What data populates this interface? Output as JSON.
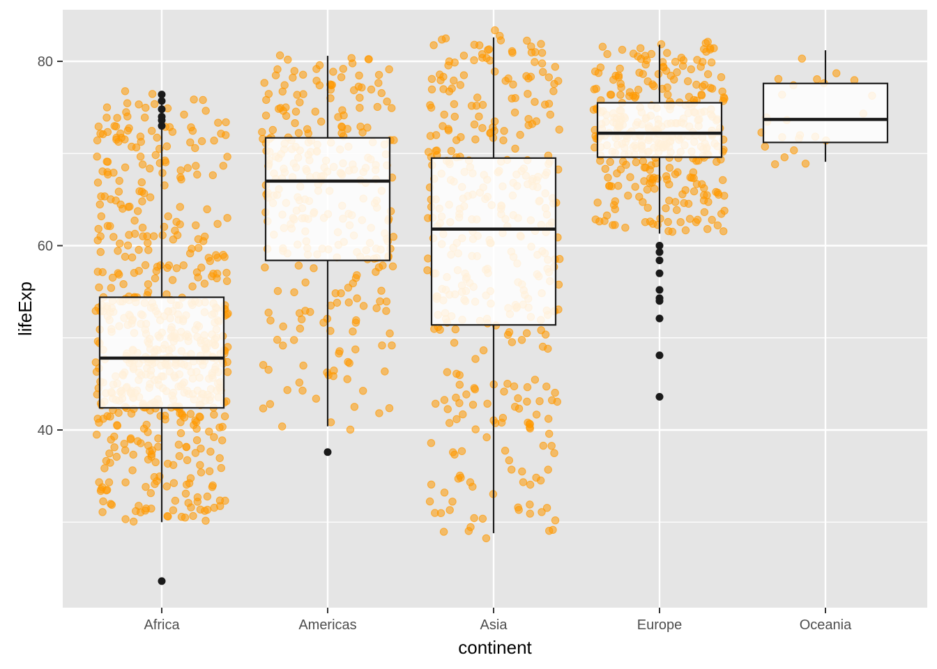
{
  "chart_data": {
    "type": "boxplot",
    "title": "",
    "xlabel": "continent",
    "ylabel": "lifeExp",
    "categories": [
      "Africa",
      "Americas",
      "Asia",
      "Europe",
      "Oceania"
    ],
    "ylim": [
      22.5,
      85.0
    ],
    "yticks": [
      40,
      60,
      80
    ],
    "grid": true,
    "legend": "none",
    "colors": {
      "panel_bg": "#e5e5e5",
      "grid": "#ffffff",
      "box_fill": "#ffffff",
      "box_line": "#1a1a1a",
      "points": "#ff9900",
      "outliers": "#1a1a1a"
    },
    "boxes": [
      {
        "category": "Africa",
        "whisker_low": 30.0,
        "q1": 42.4,
        "median": 47.8,
        "q3": 54.4,
        "whisker_high": 76.4,
        "outliers": [
          76.4,
          75.7,
          74.8,
          74.0,
          73.6,
          73.0,
          23.6
        ]
      },
      {
        "category": "Americas",
        "whisker_low": 40.4,
        "q1": 58.4,
        "median": 67.0,
        "q3": 71.7,
        "whisker_high": 80.6,
        "outliers": [
          37.6
        ]
      },
      {
        "category": "Asia",
        "whisker_low": 28.8,
        "q1": 51.4,
        "median": 61.8,
        "q3": 69.5,
        "whisker_high": 82.6,
        "outliers": []
      },
      {
        "category": "Europe",
        "whisker_low": 61.3,
        "q1": 69.6,
        "median": 72.2,
        "q3": 75.5,
        "whisker_high": 81.8,
        "outliers": [
          60.0,
          59.3,
          58.4,
          57.0,
          55.2,
          54.3,
          54.0,
          52.1,
          48.1,
          43.6
        ]
      },
      {
        "category": "Oceania",
        "whisker_low": 69.1,
        "q1": 71.2,
        "median": 73.7,
        "q3": 77.6,
        "whisker_high": 81.2,
        "outliers": []
      }
    ],
    "jitter_points": [
      {
        "category": "Africa",
        "count": 624
      },
      {
        "category": "Americas",
        "count": 300
      },
      {
        "category": "Asia",
        "count": 396
      },
      {
        "category": "Europe",
        "count": 360
      },
      {
        "category": "Oceania",
        "count": 24
      }
    ]
  }
}
